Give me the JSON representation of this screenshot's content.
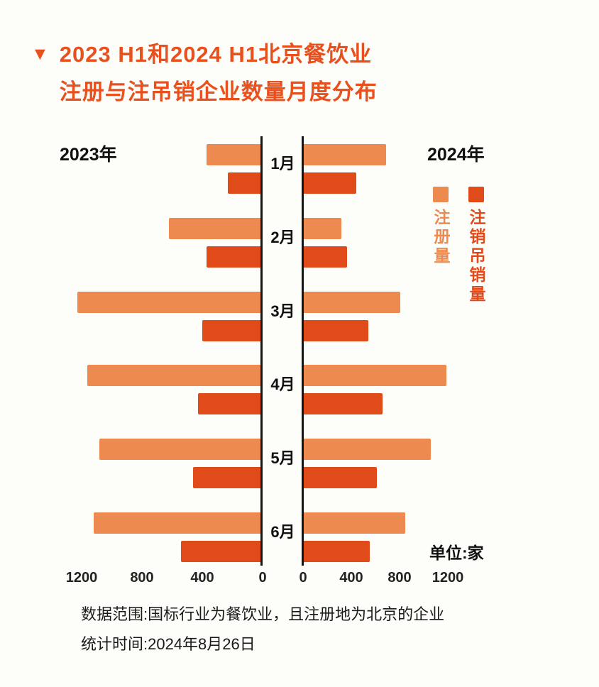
{
  "theme": {
    "title_color": "#E8501D",
    "registration_color": "#ED8A4F",
    "deregistration_color": "#E14B1A",
    "text_color": "#111111",
    "background_color": "#FDFDFA"
  },
  "title": {
    "marker": "▼",
    "line1": "2023 H1和2024 H1北京餐饮业",
    "line2": "注册与注吊销企业数量月度分布"
  },
  "chart": {
    "left_year_label": "2023年",
    "right_year_label": "2024年",
    "unit_label": "单位:家",
    "legend": [
      {
        "label": "注册量",
        "color": "#ED8A4F"
      },
      {
        "label": "注销吊销量",
        "color": "#E14B1A"
      }
    ]
  },
  "footer": {
    "line1": "数据范围:国标行业为餐饮业，且注册地为北京的企业",
    "line2": "统计时间:2024年8月26日"
  },
  "chart_data": {
    "type": "bar",
    "variant": "diverging-horizontal-pyramid",
    "title": "2023 H1和2024 H1北京餐饮业注册与注吊销企业数量月度分布",
    "unit": "家",
    "categories": [
      "1月",
      "2月",
      "3月",
      "4月",
      "5月",
      "6月"
    ],
    "series": [
      {
        "name": "2023年注册量",
        "side": "left",
        "color": "#ED8A4F",
        "values": [
          370,
          620,
          1230,
          1160,
          1080,
          1120
        ]
      },
      {
        "name": "2023年注销吊销量",
        "side": "left",
        "color": "#E14B1A",
        "values": [
          230,
          370,
          400,
          430,
          460,
          540
        ]
      },
      {
        "name": "2024年注册量",
        "side": "right",
        "color": "#ED8A4F",
        "values": [
          690,
          320,
          805,
          1190,
          1060,
          845
        ]
      },
      {
        "name": "2024年注销吊销量",
        "side": "right",
        "color": "#E14B1A",
        "values": [
          440,
          365,
          540,
          660,
          610,
          550
        ]
      }
    ],
    "axis": {
      "left_ticks": [
        1200,
        800,
        400,
        0
      ],
      "right_ticks": [
        0,
        400,
        800,
        1200
      ],
      "left_max": 1300,
      "right_max": 1500
    },
    "legend_position": "right",
    "grid": false
  }
}
